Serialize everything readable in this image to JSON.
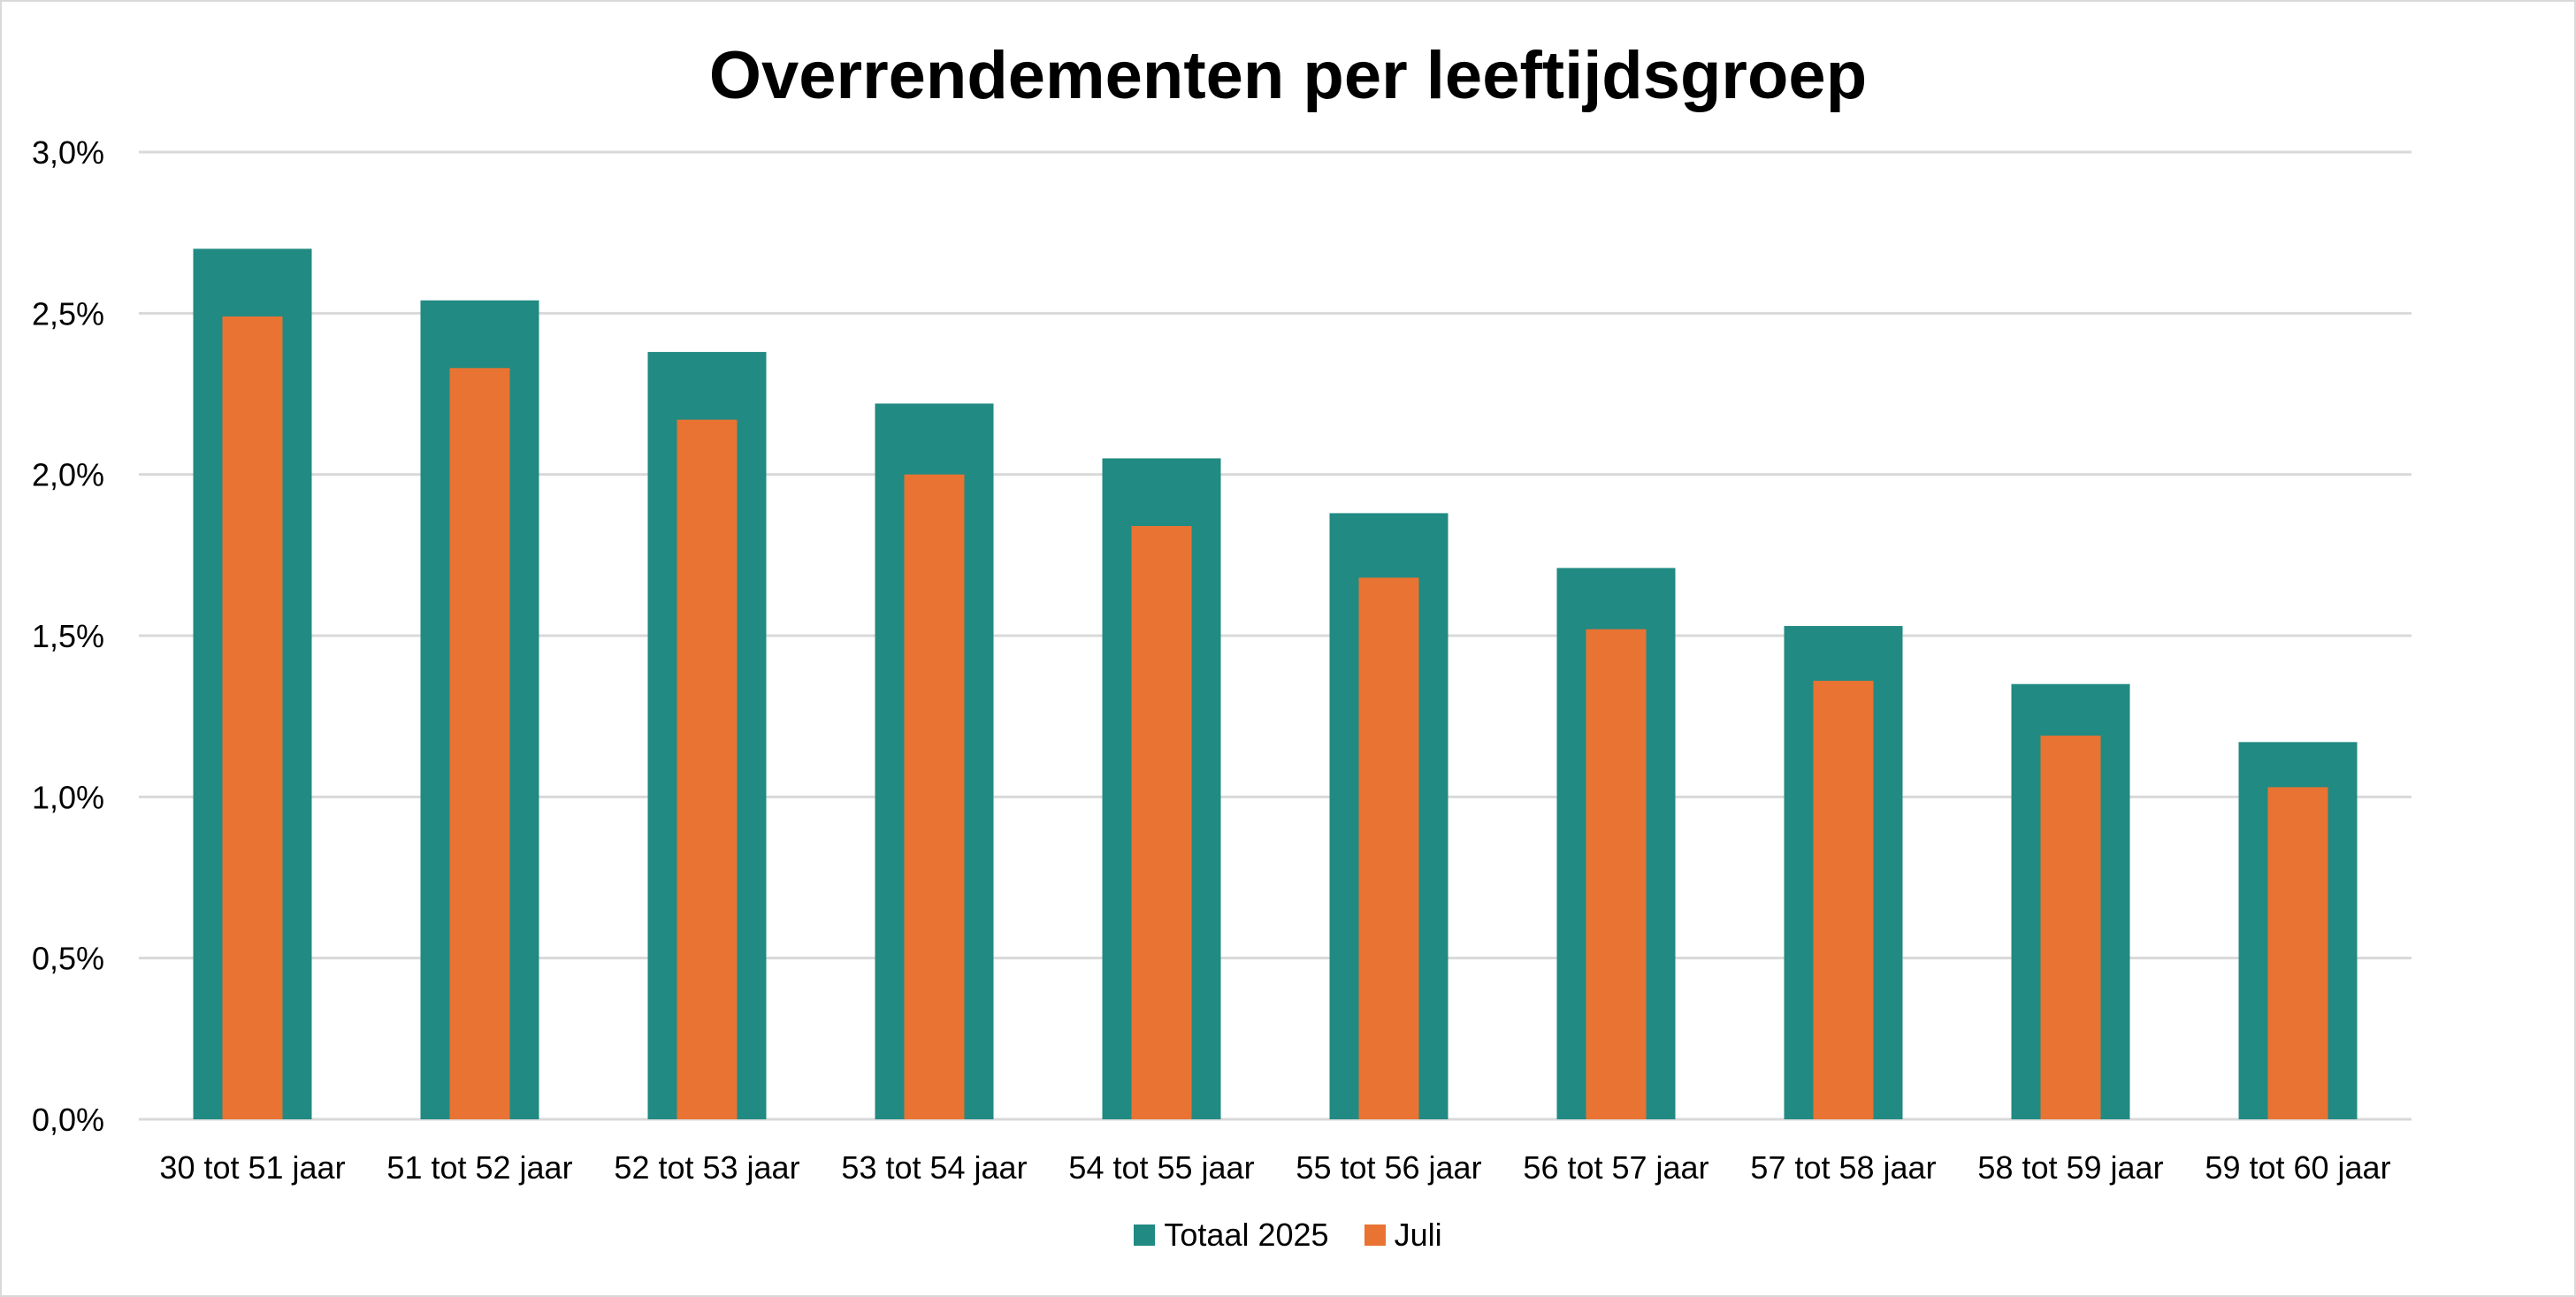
{
  "chart_data": {
    "type": "bar",
    "title": "Overrendementen per leeftijdsgroep",
    "xlabel": "",
    "ylabel": "",
    "ylim": [
      0,
      0.03
    ],
    "yticks": [
      "0,0%",
      "0,5%",
      "1,0%",
      "1,5%",
      "2,0%",
      "2,5%",
      "3,0%"
    ],
    "yticks_values": [
      0,
      0.005,
      0.01,
      0.015,
      0.02,
      0.025,
      0.03
    ],
    "grid": true,
    "legend_position": "bottom",
    "categories": [
      "30 tot 51 jaar",
      "51 tot 52 jaar",
      "52 tot 53 jaar",
      "53 tot 54 jaar",
      "54 tot 55 jaar",
      "55 tot 56 jaar",
      "56 tot 57 jaar",
      "57 tot 58 jaar",
      "58 tot 59 jaar",
      "59 tot 60 jaar"
    ],
    "series": [
      {
        "name": "Totaal 2025",
        "color": "#218a82",
        "values": [
          0.027,
          0.0254,
          0.0238,
          0.0222,
          0.0205,
          0.0188,
          0.0171,
          0.0153,
          0.0135,
          0.0117
        ]
      },
      {
        "name": "Juli",
        "color": "#e97333",
        "values": [
          0.0249,
          0.0233,
          0.0217,
          0.02,
          0.0184,
          0.0168,
          0.0152,
          0.0136,
          0.0119,
          0.0103
        ]
      }
    ]
  }
}
